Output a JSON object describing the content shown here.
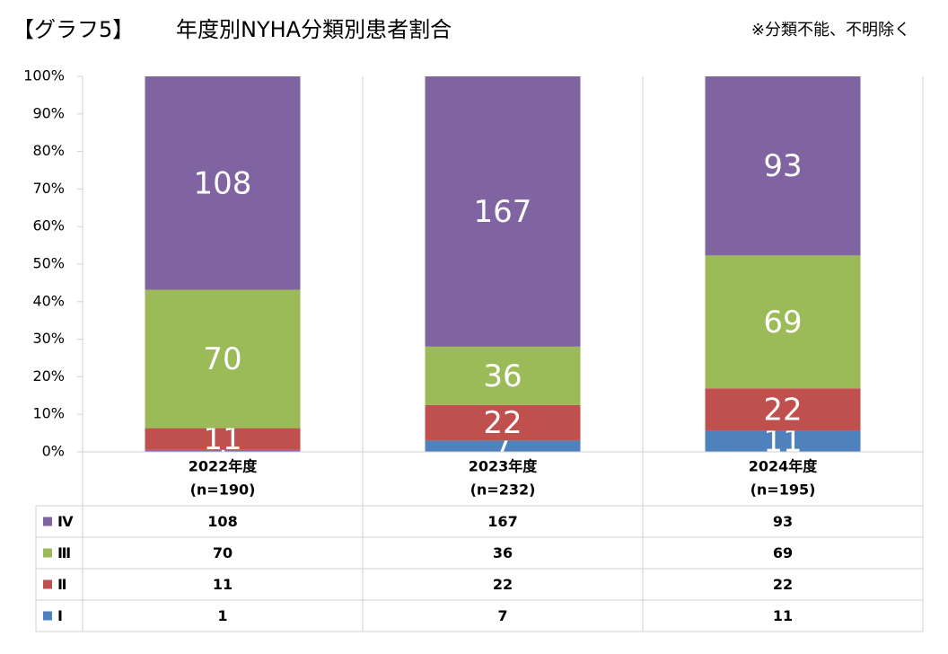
{
  "chart_data": {
    "type": "bar",
    "stacking": "percent",
    "label": "【グラフ5】",
    "title": "年度別NYHA分類別患者割合",
    "note": "※分類不能、不明除く",
    "categories": [
      "2022年度",
      "2023年度",
      "2024年度"
    ],
    "category_sublabels": [
      "(n=190)",
      "(n=232)",
      "(n=195)"
    ],
    "series": [
      {
        "name": "Ⅰ",
        "color": "#4f81bd",
        "values": [
          1,
          7,
          11
        ]
      },
      {
        "name": "Ⅱ",
        "color": "#c0504d",
        "values": [
          11,
          22,
          22
        ]
      },
      {
        "name": "Ⅲ",
        "color": "#9bbb59",
        "values": [
          70,
          36,
          69
        ]
      },
      {
        "name": "Ⅳ",
        "color": "#8064a2",
        "values": [
          108,
          167,
          93
        ]
      }
    ],
    "ylim": [
      0,
      100
    ],
    "yticks": [
      {
        "value": 0,
        "label": "0%"
      },
      {
        "value": 10,
        "label": "10%"
      },
      {
        "value": 20,
        "label": "20%"
      },
      {
        "value": 30,
        "label": "30%"
      },
      {
        "value": 40,
        "label": "40%"
      },
      {
        "value": 50,
        "label": "50%"
      },
      {
        "value": 60,
        "label": "60%"
      },
      {
        "value": 70,
        "label": "70%"
      },
      {
        "value": 80,
        "label": "80%"
      },
      {
        "value": 90,
        "label": "90%"
      },
      {
        "value": 100,
        "label": "100%"
      }
    ]
  }
}
